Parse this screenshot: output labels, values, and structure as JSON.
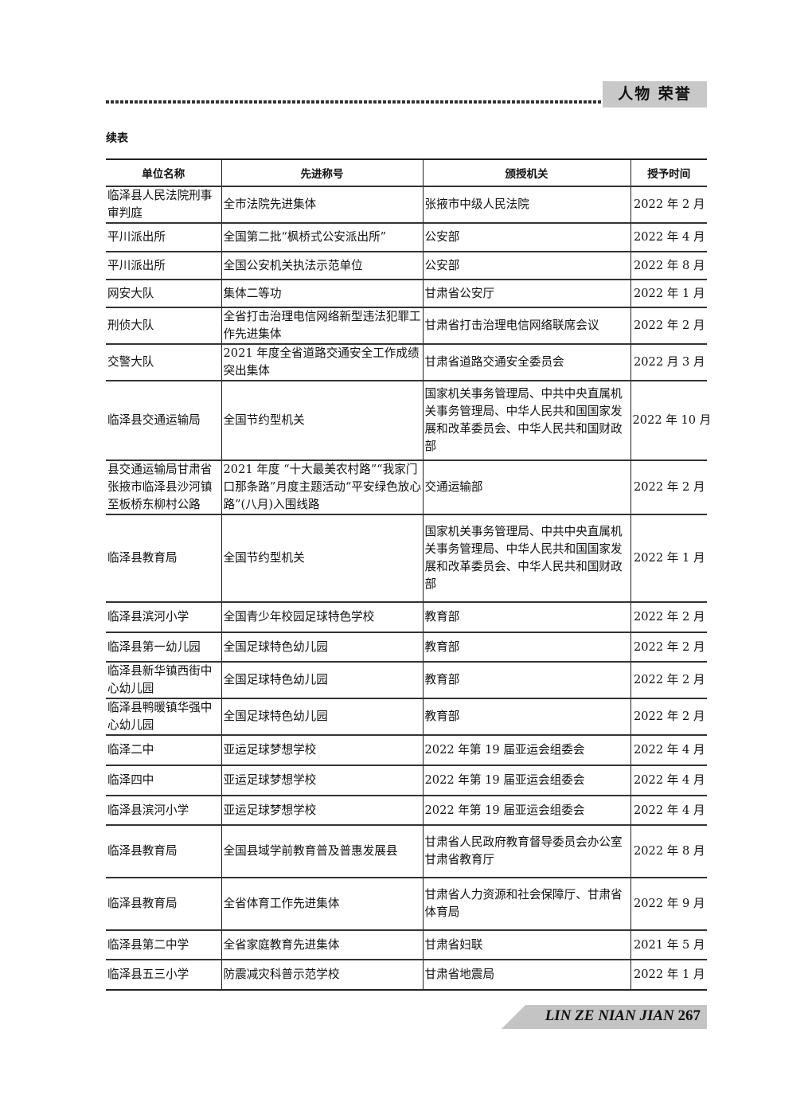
{
  "header": {
    "section": "人物 荣誉"
  },
  "caption": "续表",
  "table": {
    "columns": [
      "单位名称",
      "先进称号",
      "颁授机关",
      "授予时间"
    ],
    "rows": [
      [
        "临泽县人民法院刑事审判庭",
        "全市法院先进集体",
        "张掖市中级人民法院",
        "2022 年 2 月"
      ],
      [
        "平川派出所",
        "全国第二批“枫桥式公安派出所”",
        "公安部",
        "2022 年 4 月"
      ],
      [
        "平川派出所",
        "全国公安机关执法示范单位",
        "公安部",
        "2022 年 8 月"
      ],
      [
        "网安大队",
        "集体二等功",
        "甘肃省公安厅",
        "2022 年 1 月"
      ],
      [
        "刑侦大队",
        "全省打击治理电信网络新型违法犯罪工作先进集体",
        "甘肃省打击治理电信网络联席会议",
        "2022 年 2 月"
      ],
      [
        "交警大队",
        "2021 年度全省道路交通安全工作成绩突出集体",
        "甘肃省道路交通安全委员会",
        "2022 月 3 月"
      ],
      [
        "临泽县交通运输局",
        "全国节约型机关",
        "国家机关事务管理局、中共中央直属机关事务管理局、中华人民共和国国家发展和改革委员会、中华人民共和国财政部",
        "2022 年 10 月"
      ],
      [
        "县交通运输局甘肃省张掖市临泽县沙河镇至板桥东柳村公路",
        "2021 年度 “十大最美农村路”“我家门口那条路”月度主题活动“平安绿色放心路”(八月)入围线路",
        "交通运输部",
        "2022 年 2 月"
      ],
      [
        "临泽县教育局",
        "全国节约型机关",
        "国家机关事务管理局、中共中央直属机关事务管理局、中华人民共和国国家发展和改革委员会、中华人民共和国财政部",
        "2022 年 1 月"
      ],
      [
        "临泽县滨河小学",
        "全国青少年校园足球特色学校",
        "教育部",
        "2022 年 2 月"
      ],
      [
        "临泽县第一幼儿园",
        "全国足球特色幼儿园",
        "教育部",
        "2022 年 2 月"
      ],
      [
        "临泽县新华镇西街中心幼儿园",
        "全国足球特色幼儿园",
        "教育部",
        "2022 年 2 月"
      ],
      [
        "临泽县鸭暖镇华强中心幼儿园",
        "全国足球特色幼儿园",
        "教育部",
        "2022 年 2 月"
      ],
      [
        "临泽二中",
        "亚运足球梦想学校",
        "2022 年第 19 届亚运会组委会",
        "2022 年 4 月"
      ],
      [
        "临泽四中",
        "亚运足球梦想学校",
        "2022 年第 19 届亚运会组委会",
        "2022 年 4 月"
      ],
      [
        "临泽县滨河小学",
        "亚运足球梦想学校",
        "2022 年第 19 届亚运会组委会",
        "2022 年 4 月"
      ],
      [
        "临泽县教育局",
        "全国县域学前教育普及普惠发展县",
        "甘肃省人民政府教育督导委员会办公室甘肃省教育厅",
        "2022 年 8 月"
      ],
      [
        "临泽县教育局",
        "全省体育工作先进集体",
        "甘肃省人力资源和社会保障厅、甘肃省体育局",
        "2022 年 9 月"
      ],
      [
        "临泽县第二中学",
        "全省家庭教育先进集体",
        "甘肃省妇联",
        "2021 年 5 月"
      ],
      [
        "临泽县五三小学",
        "防震减灾科普示范学校",
        "甘肃省地震局",
        "2022 年 1 月"
      ]
    ]
  },
  "footer": {
    "title": "LIN ZE NIAN JIAN",
    "page": "267"
  }
}
